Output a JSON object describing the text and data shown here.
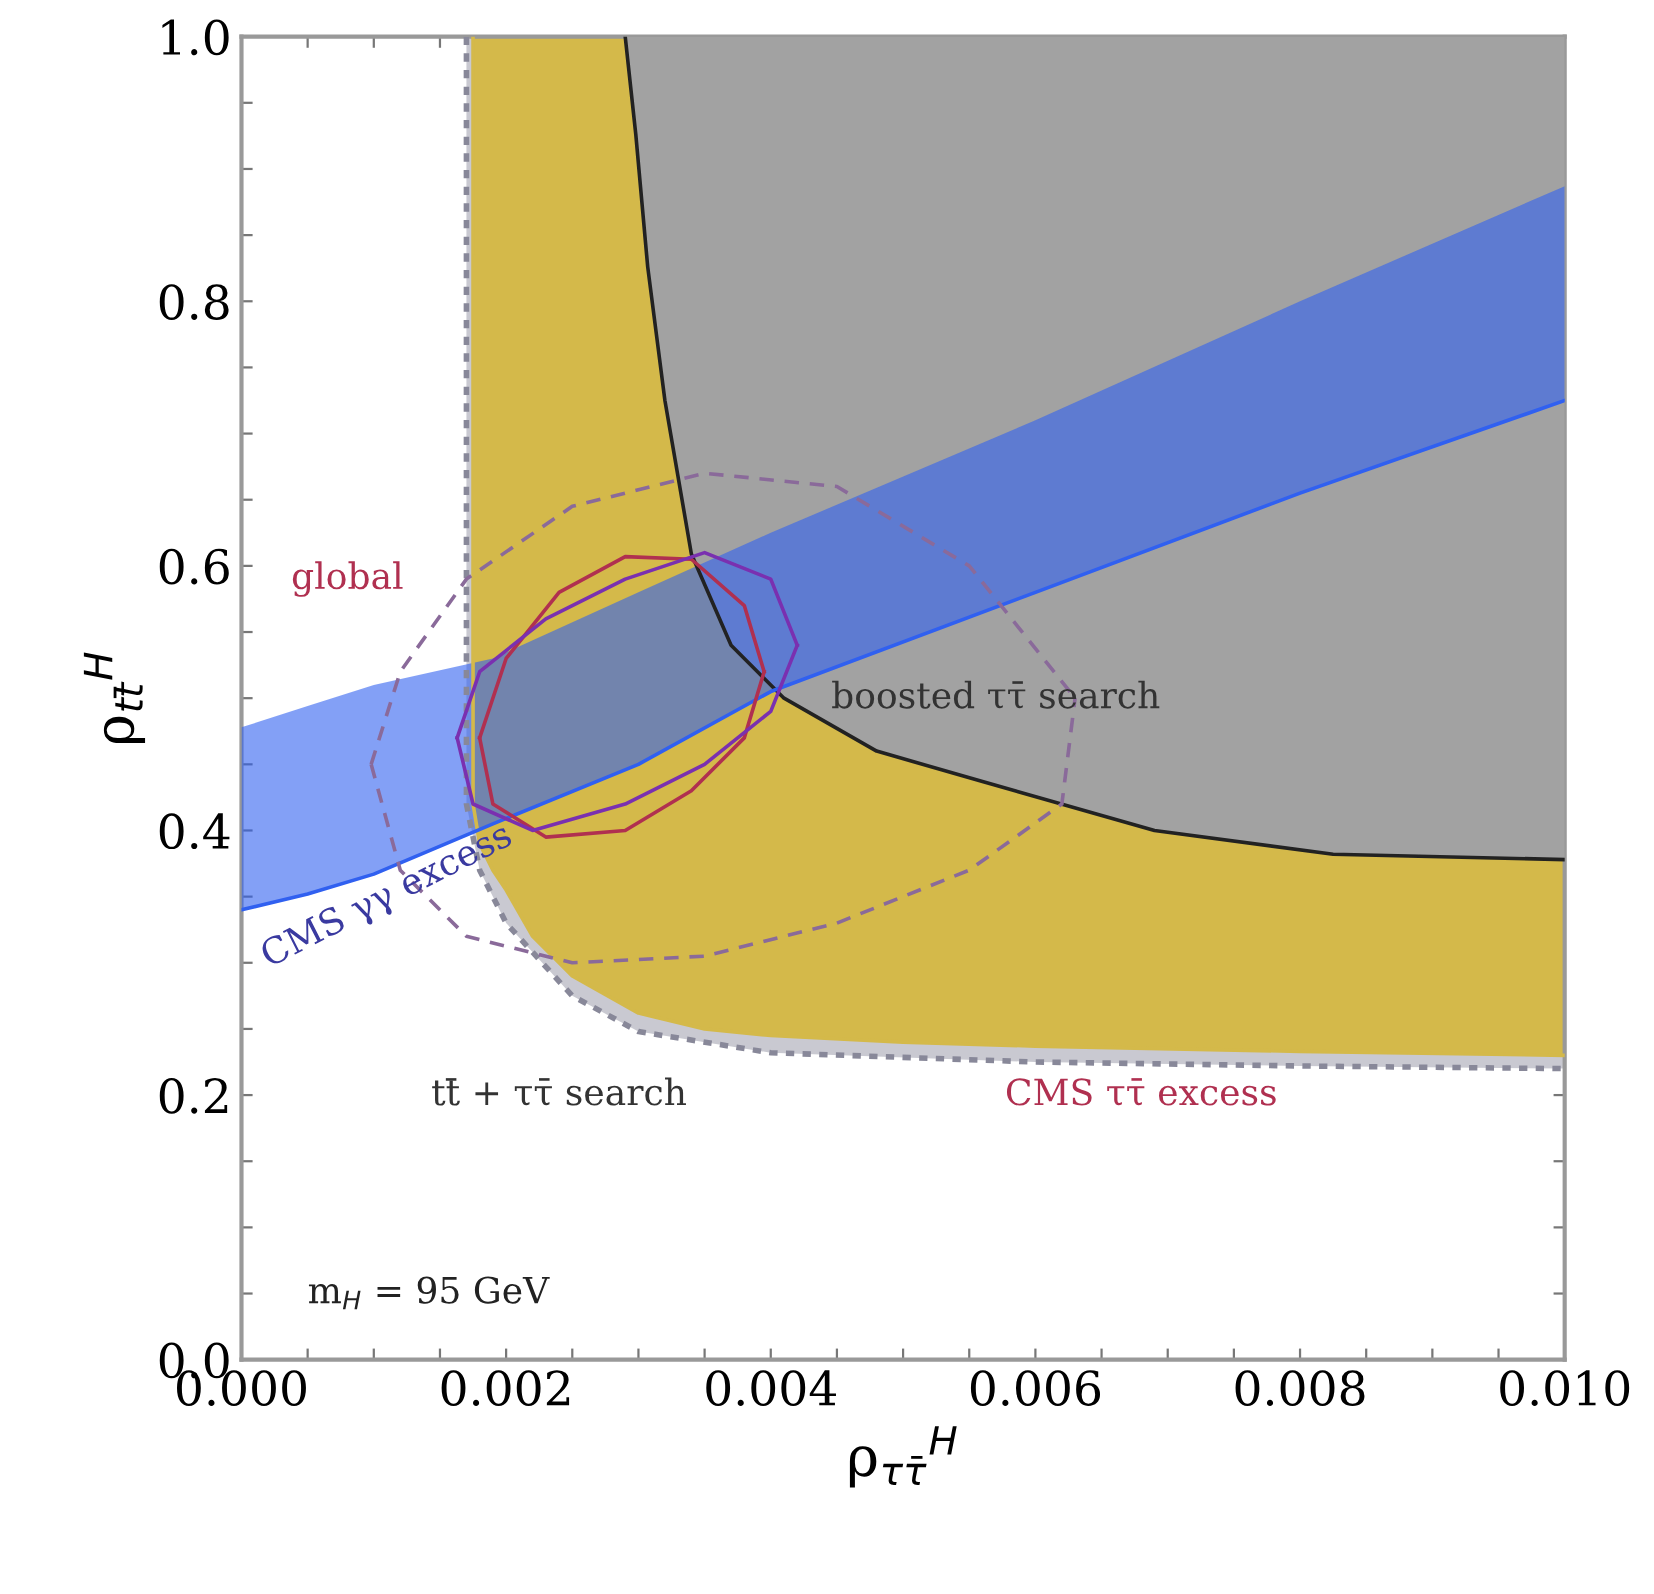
{
  "chart_data": {
    "type": "line",
    "xlabel": "ρ$_{ττ̄}$$^{H}$",
    "ylabel": "ρ$_{tt̄}$$^{H}$",
    "xlim": [
      0.0,
      0.01
    ],
    "ylim": [
      0.0,
      1.0
    ],
    "xticks": [
      {
        "value": 0.0,
        "label": "0.000"
      },
      {
        "value": 0.0005,
        "label": null
      },
      {
        "value": 0.001,
        "label": null
      },
      {
        "value": 0.0015,
        "label": null
      },
      {
        "value": 0.002,
        "label": "0.002"
      },
      {
        "value": 0.0025,
        "label": null
      },
      {
        "value": 0.003,
        "label": null
      },
      {
        "value": 0.0035,
        "label": null
      },
      {
        "value": 0.004,
        "label": "0.004"
      },
      {
        "value": 0.0045,
        "label": null
      },
      {
        "value": 0.005,
        "label": null
      },
      {
        "value": 0.0055,
        "label": null
      },
      {
        "value": 0.006,
        "label": "0.006"
      },
      {
        "value": 0.0065,
        "label": null
      },
      {
        "value": 0.007,
        "label": null
      },
      {
        "value": 0.0075,
        "label": null
      },
      {
        "value": 0.008,
        "label": "0.008"
      },
      {
        "value": 0.0085,
        "label": null
      },
      {
        "value": 0.009,
        "label": null
      },
      {
        "value": 0.0095,
        "label": null
      },
      {
        "value": 0.01,
        "label": "0.010"
      }
    ],
    "yticks": [
      {
        "value": 0.0,
        "label": "0.0"
      },
      {
        "value": 0.05,
        "label": null
      },
      {
        "value": 0.1,
        "label": null
      },
      {
        "value": 0.15,
        "label": null
      },
      {
        "value": 0.2,
        "label": "0.2"
      },
      {
        "value": 0.25,
        "label": null
      },
      {
        "value": 0.3,
        "label": null
      },
      {
        "value": 0.35,
        "label": null
      },
      {
        "value": 0.4,
        "label": "0.4"
      },
      {
        "value": 0.45,
        "label": null
      },
      {
        "value": 0.5,
        "label": null
      },
      {
        "value": 0.55,
        "label": null
      },
      {
        "value": 0.6,
        "label": "0.6"
      },
      {
        "value": 0.65,
        "label": null
      },
      {
        "value": 0.7,
        "label": null
      },
      {
        "value": 0.75,
        "label": null
      },
      {
        "value": 0.8,
        "label": "0.8"
      },
      {
        "value": 0.85,
        "label": null
      },
      {
        "value": 0.9,
        "label": null
      },
      {
        "value": 0.95,
        "label": null
      },
      {
        "value": 1.0,
        "label": "1.0"
      }
    ],
    "series": [
      {
        "color": "#888899",
        "line_style": "dotted",
        "x": [
          0.0017,
          0.0017,
          0.0018,
          0.002,
          0.0025,
          0.003,
          0.004,
          0.006,
          0.008,
          0.01
        ],
        "values": [
          1.0,
          0.42,
          0.37,
          0.33,
          0.275,
          0.248,
          0.232,
          0.225,
          0.222,
          0.22
        ],
        "lower": [
          1.0,
          0.42,
          0.37,
          0.33,
          0.275,
          0.248,
          0.232,
          0.225,
          0.222,
          0.22
        ],
        "upper": [
          1.0,
          1.0,
          1.0,
          1.0,
          1.0,
          1.0,
          1.0,
          1.0,
          1.0,
          1.0
        ]
      },
      {
        "color": "#d4b94a",
        "line_style": "solid",
        "x": [
          0.00175,
          0.00175,
          0.0018,
          0.0019,
          0.002,
          0.0022,
          0.0025,
          0.003,
          0.0035,
          0.004,
          0.005,
          0.006,
          0.008,
          0.01
        ],
        "values": [
          1.0,
          0.42,
          0.39,
          0.37,
          0.355,
          0.32,
          0.29,
          0.262,
          0.25,
          0.245,
          0.24,
          0.237,
          0.233,
          0.23
        ],
        "lower": [
          1.0,
          0.42,
          0.39,
          0.37,
          0.355,
          0.32,
          0.29,
          0.262,
          0.25,
          0.245,
          0.24,
          0.237,
          0.233,
          0.23
        ],
        "upper": [
          1.0,
          1.0,
          1.0,
          1.0,
          1.0,
          1.0,
          1.0,
          1.0,
          1.0,
          1.0,
          1.0,
          1.0,
          1.0,
          1.0
        ]
      },
      {
        "color": "#222222",
        "line_style": "solid",
        "x": [
          0.0029,
          0.00298,
          0.00307,
          0.0032,
          0.0034,
          0.0037,
          0.0041,
          0.0048,
          0.0056,
          0.0069,
          0.00825,
          0.01
        ],
        "values": [
          1.0,
          0.926,
          0.826,
          0.725,
          0.609,
          0.54,
          0.5,
          0.46,
          0.437,
          0.4,
          0.382,
          0.378
        ],
        "lower": [
          1.0,
          0.926,
          0.826,
          0.725,
          0.609,
          0.54,
          0.5,
          0.46,
          0.437,
          0.4,
          0.382,
          0.378
        ],
        "upper": [
          1.0,
          1.0,
          1.0,
          1.0,
          1.0,
          1.0,
          1.0,
          1.0,
          1.0,
          1.0,
          1.0,
          1.0
        ]
      },
      {
        "color": "#3060f0",
        "line_style": "solid",
        "x": [
          0.0,
          0.0005,
          0.001,
          0.0019,
          0.003,
          0.004,
          0.006,
          0.008,
          0.01
        ],
        "values": [
          0.34,
          0.352,
          0.367,
          0.405,
          0.45,
          0.505,
          0.58,
          0.655,
          0.725
        ],
        "lower": [
          0.34,
          0.352,
          0.367,
          0.405,
          0.45,
          0.505,
          0.58,
          0.655,
          0.725
        ],
        "upper": [
          0.478,
          0.494,
          0.51,
          0.53,
          0.58,
          0.625,
          0.71,
          0.8,
          0.887
        ]
      },
      {
        "color": "#8a6a9a",
        "line_style": "dashed",
        "x": [
          0.00098,
          0.0012,
          0.0017,
          0.0025,
          0.0035,
          0.0045,
          0.0055,
          0.0063
        ],
        "values": [
          0.45,
          0.52,
          0.59,
          0.645,
          0.67,
          0.66,
          0.6,
          0.5
        ]
      },
      {
        "color": "#8a6a9a",
        "line_style": "dashed",
        "x": [
          0.00098,
          0.0012,
          0.0017,
          0.0025,
          0.0035,
          0.0045,
          0.0055,
          0.0062,
          0.0063
        ],
        "values": [
          0.45,
          0.37,
          0.32,
          0.3,
          0.305,
          0.33,
          0.37,
          0.42,
          0.5
        ]
      },
      {
        "color": "#b03050",
        "line_style": "solid",
        "x": [
          0.0018,
          0.002,
          0.0024,
          0.0029,
          0.0034,
          0.0038,
          0.00395
        ],
        "values": [
          0.47,
          0.53,
          0.58,
          0.607,
          0.605,
          0.57,
          0.52
        ]
      },
      {
        "color": "#b03050",
        "line_style": "solid",
        "x": [
          0.0018,
          0.0019,
          0.0023,
          0.0029,
          0.0034,
          0.0038,
          0.00395
        ],
        "values": [
          0.47,
          0.42,
          0.395,
          0.4,
          0.43,
          0.47,
          0.52
        ]
      },
      {
        "color": "#7a30b0",
        "line_style": "solid",
        "x": [
          0.00163,
          0.0018,
          0.0023,
          0.0029,
          0.0035,
          0.004,
          0.0042
        ],
        "values": [
          0.47,
          0.52,
          0.56,
          0.59,
          0.61,
          0.59,
          0.54
        ]
      },
      {
        "color": "#7a30b0",
        "line_style": "solid",
        "x": [
          0.00163,
          0.00175,
          0.0022,
          0.0029,
          0.0035,
          0.004,
          0.0042
        ],
        "values": [
          0.47,
          0.42,
          0.4,
          0.42,
          0.45,
          0.49,
          0.54
        ]
      }
    ],
    "annotations": [
      "global",
      "boosted ττ̄ search",
      "CMS γγ excess",
      "tt̄ + ττ̄ search",
      "CMS ττ̄ excess",
      "m$_{H}$ = 95 GeV"
    ]
  }
}
